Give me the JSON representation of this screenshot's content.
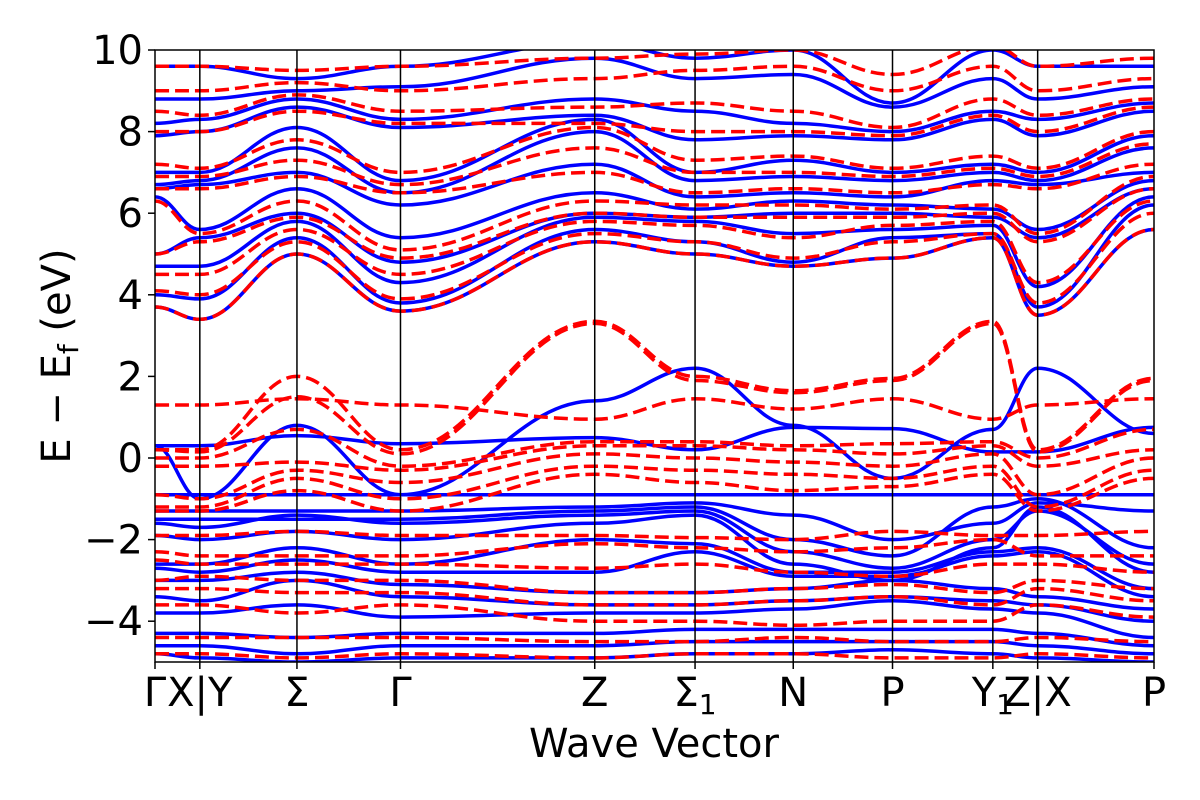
{
  "chart_data": {
    "type": "line",
    "xlabel": "Wave Vector",
    "ylabel": "E − E",
    "ylabel_sub": "f",
    "ylabel_unit": " (eV)",
    "ylim": [
      -5,
      10
    ],
    "yticks": [
      -4,
      -2,
      0,
      2,
      4,
      6,
      8,
      10
    ],
    "ytick_labels": [
      "−4",
      "−2",
      "0",
      "2",
      "4",
      "6",
      "8",
      "10"
    ],
    "xlim": [
      0,
      9.36
    ],
    "kpoints": [
      {
        "x": 0.0,
        "label": "Γ",
        "sub": ""
      },
      {
        "x": 0.42,
        "label": "X|Y",
        "sub": ""
      },
      {
        "x": 1.33,
        "label": "Σ",
        "sub": ""
      },
      {
        "x": 2.3,
        "label": "Γ",
        "sub": ""
      },
      {
        "x": 4.12,
        "label": "Z",
        "sub": ""
      },
      {
        "x": 5.06,
        "label": "Σ",
        "sub": "1"
      },
      {
        "x": 5.98,
        "label": "N",
        "sub": ""
      },
      {
        "x": 6.91,
        "label": "P",
        "sub": ""
      },
      {
        "x": 7.85,
        "label": "Y",
        "sub": "1"
      },
      {
        "x": 8.27,
        "label": "Z|X",
        "sub": ""
      },
      {
        "x": 9.36,
        "label": "P",
        "sub": ""
      }
    ],
    "grid": false,
    "series": [
      {
        "style": "solid",
        "color": "#0000ff",
        "bands": [
          [
            0.3,
            0.3,
            0.55,
            0.35,
            0.5,
            0.2,
            0.75,
            0.72,
            0.15,
            0.15,
            0.75
          ],
          [
            0.3,
            -1.0,
            0.8,
            -0.9,
            1.4,
            2.2,
            0.8,
            -0.5,
            0.7,
            2.2,
            0.6
          ],
          [
            -0.9,
            -0.9,
            -0.9,
            -0.9,
            -0.9,
            -0.9,
            -0.9,
            -0.9,
            -0.9,
            -0.9,
            -0.9
          ],
          [
            -1.3,
            -1.3,
            -1.3,
            -1.3,
            -1.2,
            -1.1,
            -1.4,
            -2.0,
            -1.6,
            -1.1,
            -1.3
          ],
          [
            -1.5,
            -1.5,
            -1.5,
            -1.5,
            -1.3,
            -1.2,
            -2.0,
            -2.4,
            -1.2,
            -1.0,
            -2.2
          ],
          [
            -1.6,
            -1.7,
            -1.4,
            -1.6,
            -1.4,
            -1.3,
            -2.3,
            -2.7,
            -2.0,
            -1.3,
            -2.6
          ],
          [
            -1.9,
            -2.0,
            -1.8,
            -2.0,
            -1.6,
            -1.4,
            -2.6,
            -3.0,
            -2.2,
            -1.2,
            -2.8
          ],
          [
            -2.6,
            -2.6,
            -2.2,
            -2.6,
            -2.0,
            -2.1,
            -2.8,
            -2.8,
            -2.3,
            -2.2,
            -3.2
          ],
          [
            -2.7,
            -2.8,
            -2.5,
            -2.8,
            -2.8,
            -2.3,
            -2.9,
            -2.9,
            -2.4,
            -2.3,
            -3.4
          ],
          [
            -3.0,
            -3.0,
            -2.8,
            -3.1,
            -3.3,
            -3.3,
            -3.2,
            -3.0,
            -3.2,
            -3.4,
            -3.7
          ],
          [
            -3.4,
            -3.5,
            -3.0,
            -3.4,
            -3.6,
            -3.6,
            -3.5,
            -3.4,
            -3.5,
            -3.6,
            -4.0
          ],
          [
            -3.8,
            -3.8,
            -3.6,
            -3.9,
            -3.8,
            -3.8,
            -3.7,
            -3.5,
            -3.7,
            -3.8,
            -4.4
          ],
          [
            -4.3,
            -4.3,
            -4.4,
            -4.3,
            -4.3,
            -4.2,
            -4.2,
            -4.2,
            -4.2,
            -4.3,
            -4.6
          ],
          [
            -4.6,
            -4.6,
            -4.8,
            -4.6,
            -4.6,
            -4.5,
            -4.5,
            -4.5,
            -4.5,
            -4.6,
            -4.8
          ],
          [
            -4.8,
            -4.9,
            -5.0,
            -4.9,
            -4.9,
            -4.8,
            -4.8,
            -4.7,
            -4.8,
            -4.9,
            -5.0
          ],
          [
            3.7,
            3.4,
            5.0,
            3.6,
            5.3,
            5.0,
            4.7,
            4.9,
            5.4,
            3.5,
            5.6
          ],
          [
            4.0,
            3.9,
            5.4,
            3.8,
            5.6,
            5.3,
            4.8,
            5.4,
            5.5,
            3.7,
            6.2
          ],
          [
            4.7,
            4.7,
            5.8,
            4.3,
            5.9,
            5.8,
            5.5,
            5.6,
            5.7,
            4.2,
            6.4
          ],
          [
            5.0,
            5.4,
            6.0,
            4.8,
            6.0,
            5.9,
            6.0,
            6.0,
            5.9,
            5.4,
            6.6
          ],
          [
            6.4,
            5.6,
            6.6,
            5.4,
            6.5,
            6.1,
            6.3,
            6.2,
            6.1,
            5.6,
            6.8
          ],
          [
            6.6,
            6.7,
            7.0,
            6.2,
            7.2,
            6.4,
            6.5,
            6.4,
            6.8,
            6.7,
            7.0
          ],
          [
            6.7,
            6.8,
            7.6,
            6.5,
            8.0,
            6.8,
            6.9,
            6.8,
            7.0,
            6.8,
            7.6
          ],
          [
            7.0,
            7.0,
            8.1,
            6.8,
            8.3,
            7.0,
            7.3,
            7.0,
            7.2,
            7.0,
            7.9
          ],
          [
            7.9,
            8.0,
            8.6,
            8.1,
            8.4,
            7.8,
            7.9,
            7.8,
            8.3,
            7.9,
            8.5
          ],
          [
            8.2,
            8.3,
            8.8,
            8.3,
            8.8,
            8.5,
            8.2,
            8.0,
            8.5,
            8.3,
            8.7
          ],
          [
            8.8,
            8.8,
            9.0,
            9.1,
            9.8,
            9.3,
            9.4,
            8.6,
            9.3,
            8.8,
            9.1
          ],
          [
            9.6,
            9.6,
            9.3,
            9.6,
            10.2,
            9.8,
            10.0,
            8.7,
            10.0,
            9.6,
            9.6
          ]
        ]
      },
      {
        "style": "dashed",
        "color": "#ff0000",
        "bands": [
          [
            1.3,
            1.3,
            1.45,
            1.3,
            0.95,
            1.45,
            1.2,
            1.45,
            0.95,
            1.3,
            1.45
          ],
          [
            0.2,
            0.2,
            2.0,
            0.2,
            3.35,
            2.0,
            1.65,
            1.95,
            3.35,
            0.2,
            1.95
          ],
          [
            0.2,
            0.15,
            1.5,
            0.1,
            3.3,
            1.9,
            1.6,
            1.9,
            3.3,
            0.15,
            1.9
          ],
          [
            0.0,
            0.0,
            0.7,
            -0.2,
            0.4,
            0.4,
            0.3,
            0.35,
            0.4,
            0.0,
            0.7
          ],
          [
            -0.2,
            -0.2,
            -0.1,
            -0.3,
            0.3,
            0.3,
            0.2,
            0.1,
            0.3,
            -0.2,
            0.2
          ],
          [
            -0.9,
            -1.0,
            -0.3,
            -0.6,
            0.1,
            0.0,
            -0.1,
            -0.2,
            0.1,
            -0.9,
            0.0
          ],
          [
            -1.2,
            -1.2,
            -0.5,
            -1.0,
            -0.2,
            -0.3,
            -0.4,
            -0.5,
            -0.2,
            -1.2,
            -0.3
          ],
          [
            -1.3,
            -1.3,
            -0.8,
            -1.3,
            -0.4,
            -0.6,
            -0.8,
            -0.7,
            -0.4,
            -1.3,
            -0.5
          ],
          [
            -1.9,
            -1.9,
            -1.8,
            -1.9,
            -1.9,
            -1.95,
            -2.0,
            -1.8,
            -1.9,
            -1.9,
            -1.8
          ],
          [
            -2.3,
            -2.4,
            -2.4,
            -2.4,
            -2.1,
            -2.2,
            -2.3,
            -2.2,
            -2.0,
            -2.4,
            -2.4
          ],
          [
            -2.5,
            -2.6,
            -2.6,
            -2.6,
            -2.7,
            -2.6,
            -2.8,
            -2.9,
            -2.6,
            -2.6,
            -2.8
          ],
          [
            -3.0,
            -2.9,
            -3.0,
            -3.0,
            -3.3,
            -3.3,
            -3.2,
            -3.1,
            -3.3,
            -3.0,
            -3.2
          ],
          [
            -3.2,
            -3.2,
            -3.3,
            -3.3,
            -3.6,
            -3.6,
            -3.5,
            -3.4,
            -3.6,
            -3.2,
            -3.5
          ],
          [
            -3.6,
            -3.6,
            -3.8,
            -3.6,
            -4.0,
            -4.0,
            -4.1,
            -4.0,
            -4.0,
            -3.6,
            -3.9
          ],
          [
            -4.4,
            -4.4,
            -4.4,
            -4.4,
            -4.5,
            -4.5,
            -4.4,
            -4.5,
            -4.5,
            -4.4,
            -4.5
          ],
          [
            -4.8,
            -4.8,
            -4.9,
            -4.8,
            -4.9,
            -4.8,
            -4.8,
            -4.9,
            -4.9,
            -4.8,
            -4.9
          ],
          [
            3.7,
            3.4,
            5.0,
            3.6,
            5.3,
            5.0,
            4.7,
            4.9,
            5.4,
            3.5,
            5.6
          ],
          [
            4.1,
            4.0,
            5.3,
            3.9,
            5.5,
            5.3,
            4.9,
            5.3,
            5.5,
            3.8,
            6.0
          ],
          [
            4.5,
            4.5,
            5.6,
            4.5,
            5.8,
            5.7,
            5.4,
            5.7,
            5.8,
            4.3,
            6.3
          ],
          [
            5.0,
            5.3,
            5.9,
            4.9,
            6.0,
            5.9,
            5.9,
            5.9,
            6.0,
            5.3,
            6.6
          ],
          [
            6.3,
            5.5,
            6.3,
            5.1,
            6.3,
            6.2,
            6.2,
            6.1,
            6.2,
            5.5,
            6.9
          ],
          [
            6.6,
            6.6,
            6.9,
            6.5,
            7.0,
            6.5,
            6.6,
            6.5,
            6.7,
            6.6,
            7.2
          ],
          [
            6.9,
            6.9,
            7.3,
            6.7,
            7.6,
            7.0,
            7.0,
            6.9,
            7.1,
            6.9,
            7.7
          ],
          [
            7.2,
            7.1,
            7.8,
            7.0,
            8.1,
            7.3,
            7.4,
            7.1,
            7.4,
            7.1,
            8.0
          ],
          [
            8.0,
            8.0,
            8.5,
            8.2,
            8.2,
            8.0,
            8.0,
            7.9,
            8.4,
            8.0,
            8.6
          ],
          [
            8.5,
            8.4,
            8.9,
            8.5,
            8.6,
            8.7,
            8.5,
            8.1,
            8.8,
            8.4,
            8.8
          ],
          [
            9.0,
            9.0,
            9.2,
            9.0,
            9.3,
            9.5,
            9.6,
            9.0,
            9.6,
            9.0,
            9.3
          ],
          [
            9.6,
            9.6,
            9.5,
            9.6,
            9.8,
            9.9,
            10.0,
            9.4,
            10.1,
            9.6,
            9.8
          ]
        ]
      }
    ]
  }
}
